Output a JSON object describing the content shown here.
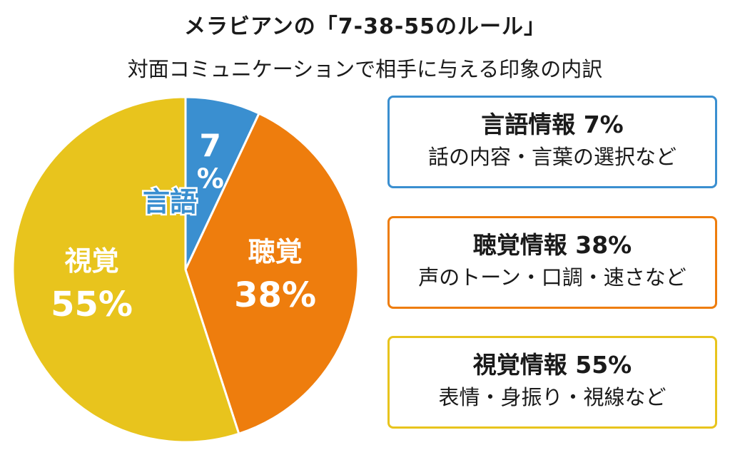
{
  "header": {
    "title": "メラビアンの「7-38-55のルール」",
    "subtitle": "対面コミュニケーションで相手に与える印象の内訳"
  },
  "chart_data": {
    "type": "pie",
    "title": "メラビアンの「7-38-55のルール」",
    "subtitle": "対面コミュニケーションで相手に与える印象の内訳",
    "slices": [
      {
        "label": "言語",
        "value": 7,
        "value_label": "7%",
        "color": "#3a8fd0"
      },
      {
        "label": "聴覚",
        "value": 38,
        "value_label": "38%",
        "color": "#ee7d0d"
      },
      {
        "label": "視覚",
        "value": 55,
        "value_label": "55%",
        "color": "#e8c41d"
      }
    ]
  },
  "legend": [
    {
      "title": "言語情報 7%",
      "desc": "話の内容・言葉の選択など",
      "color": "#3a8fd0"
    },
    {
      "title": "聴覚情報 38%",
      "desc": "声のトーン・口調・速さなど",
      "color": "#ee7d0d"
    },
    {
      "title": "視覚情報 55%",
      "desc": "表情・身振り・視線など",
      "color": "#e8c41d"
    }
  ]
}
